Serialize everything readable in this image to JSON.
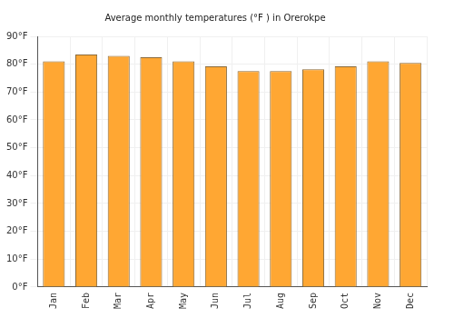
{
  "chart_data": {
    "type": "bar",
    "title": "Average monthly temperatures (°F ) in Orerokpe",
    "categories": [
      "Jan",
      "Feb",
      "Mar",
      "Apr",
      "May",
      "Jun",
      "Jul",
      "Aug",
      "Sep",
      "Oct",
      "Nov",
      "Dec"
    ],
    "values": [
      81,
      83.5,
      83,
      82.5,
      81,
      79.2,
      77.5,
      77.5,
      78.2,
      79.2,
      81,
      80.5
    ],
    "color": "#ffa733",
    "ylim": [
      0,
      90
    ],
    "yticks": [
      {
        "value": 0,
        "label": "0°F"
      },
      {
        "value": 10,
        "label": "10°F"
      },
      {
        "value": 20,
        "label": "20°F"
      },
      {
        "value": 30,
        "label": "30°F"
      },
      {
        "value": 40,
        "label": "40°F"
      },
      {
        "value": 50,
        "label": "50°F"
      },
      {
        "value": 60,
        "label": "60°F"
      },
      {
        "value": 70,
        "label": "70°F"
      },
      {
        "value": 80,
        "label": "80°F"
      },
      {
        "value": 90,
        "label": "90°F"
      }
    ],
    "grid": true
  }
}
